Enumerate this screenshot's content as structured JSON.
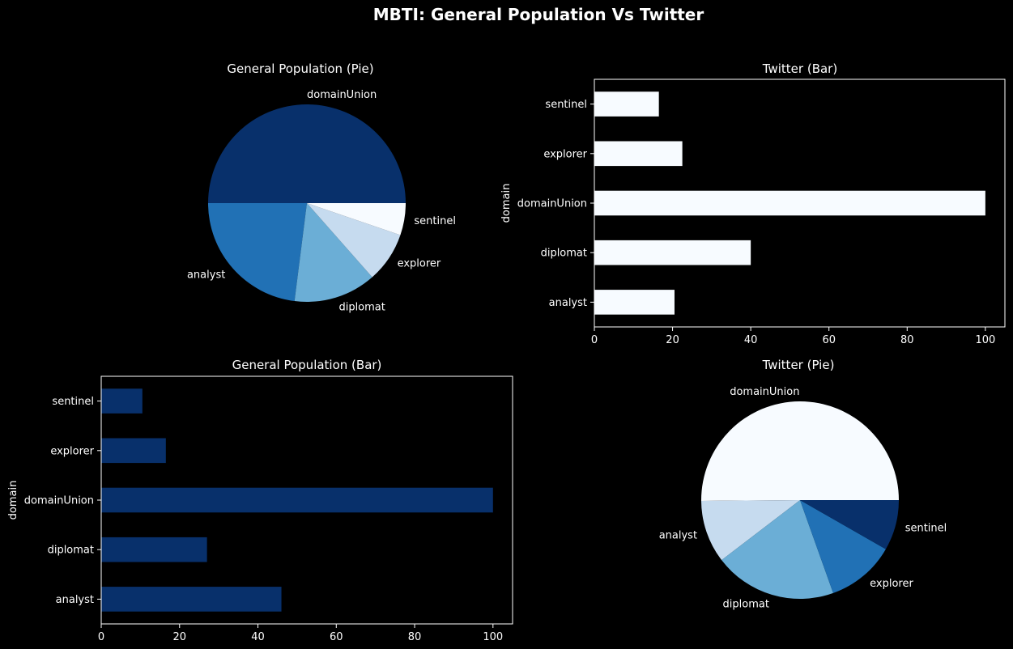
{
  "suptitle": "MBTI: General Population Vs Twitter",
  "chart_data": [
    {
      "id": "gp_pie",
      "type": "pie",
      "title": "General Population (Pie)",
      "labels": [
        "domainUnion",
        "analyst",
        "diplomat",
        "explorer",
        "sentinel"
      ],
      "values": [
        100,
        46,
        27,
        16.5,
        10.5
      ],
      "colors": [
        "#08306b",
        "#2171b5",
        "#6baed6",
        "#c6dbef",
        "#f7fbff"
      ]
    },
    {
      "id": "tw_bar",
      "type": "bar",
      "orientation": "horizontal",
      "title": "Twitter (Bar)",
      "ylabel": "domain",
      "categories": [
        "analyst",
        "diplomat",
        "domainUnion",
        "explorer",
        "sentinel"
      ],
      "values": [
        20.5,
        40,
        100,
        22.5,
        16.5
      ],
      "xlim": [
        0,
        105
      ],
      "xticks": [
        0,
        20,
        40,
        60,
        80,
        100
      ],
      "color": "#f7fbff"
    },
    {
      "id": "gp_bar",
      "type": "bar",
      "orientation": "horizontal",
      "title": "General Population (Bar)",
      "ylabel": "domain",
      "categories": [
        "analyst",
        "diplomat",
        "domainUnion",
        "explorer",
        "sentinel"
      ],
      "values": [
        46,
        27,
        100,
        16.5,
        10.5
      ],
      "xlim": [
        0,
        105
      ],
      "xticks": [
        0,
        20,
        40,
        60,
        80,
        100
      ],
      "color": "#08306b"
    },
    {
      "id": "tw_pie",
      "type": "pie",
      "title": "Twitter (Pie)",
      "labels": [
        "domainUnion",
        "analyst",
        "diplomat",
        "explorer",
        "sentinel"
      ],
      "values": [
        100,
        20.5,
        40,
        22.5,
        16.5
      ],
      "colors": [
        "#f7fbff",
        "#c6dbef",
        "#6baed6",
        "#2171b5",
        "#08306b"
      ]
    }
  ]
}
